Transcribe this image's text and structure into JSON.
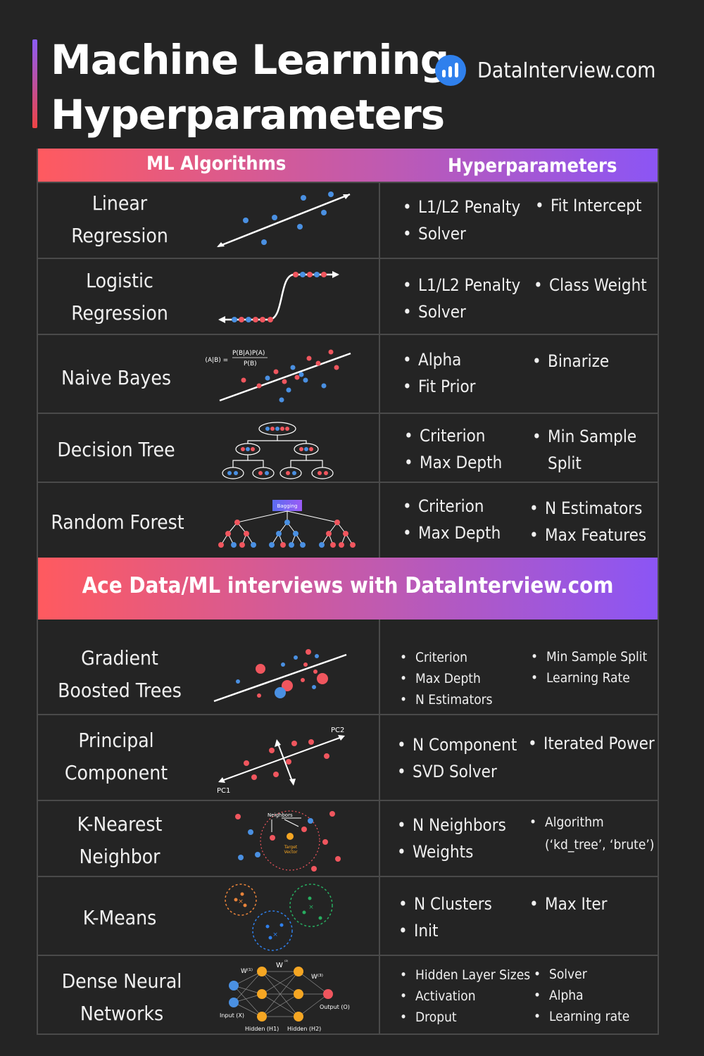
{
  "title": {
    "line1": "Machine Learning",
    "line2": "Hyperparameters"
  },
  "brand": {
    "text": "DataInterview.com",
    "icon": "bar-chart-icon",
    "color": "#2f80ed"
  },
  "header": {
    "col1": "ML Algorithms",
    "col2": "Hyperparameters"
  },
  "banner": "Ace Data/ML interviews with DataInterview.com",
  "colors": {
    "red": "#f0565e",
    "blue": "#4a90e2",
    "gradient_start": "#ff5a5f",
    "gradient_end": "#8b55f5"
  },
  "rows": [
    {
      "name": [
        "Linear",
        "Regression"
      ],
      "left": [
        "L1/L2 Penalty",
        "Solver"
      ],
      "right": [
        "Fit Intercept"
      ]
    },
    {
      "name": [
        "Logistic",
        "Regression"
      ],
      "left": [
        "L1/L2 Penalty",
        "Solver"
      ],
      "right": [
        "Class Weight"
      ]
    },
    {
      "name": [
        "Naive Bayes"
      ],
      "left": [
        "Alpha",
        "Fit Prior"
      ],
      "right": [
        "Binarize"
      ],
      "formula_left": "P(A|B) =",
      "formula_num": "P(B|A)P(A)",
      "formula_den": "P(B)"
    },
    {
      "name": [
        "Decision Tree"
      ],
      "left": [
        "Criterion",
        "Max Depth"
      ],
      "right": [
        "Min Sample",
        "Split"
      ]
    },
    {
      "name": [
        "Random Forest"
      ],
      "left": [
        "Criterion",
        "Max Depth"
      ],
      "right": [
        "N Estimators",
        "Max Features"
      ],
      "badge": "Bagging"
    },
    {
      "name": [
        "Gradient",
        "Boosted Trees"
      ],
      "left": [
        "Criterion",
        "Max Depth",
        "N Estimators"
      ],
      "right": [
        "Min Sample Split",
        "Learning Rate"
      ]
    },
    {
      "name": [
        "Principal",
        "Component"
      ],
      "left": [
        "N Component",
        "SVD Solver"
      ],
      "right": [
        "Iterated Power"
      ],
      "pc1": "PC1",
      "pc2": "PC2"
    },
    {
      "name": [
        "K-Nearest",
        "Neighbor"
      ],
      "left": [
        "N Neighbors",
        "Weights"
      ],
      "right": [
        "Algorithm",
        "(‘kd_tree’, ‘brute’)"
      ],
      "neighbors_label": "Neighbors",
      "target_label1": "Target",
      "target_label2": "Vector"
    },
    {
      "name": [
        "K-Means"
      ],
      "left": [
        "N Clusters",
        "Init"
      ],
      "right": [
        "Max Iter"
      ]
    },
    {
      "name": [
        "Dense Neural",
        "Networks"
      ],
      "left": [
        "Hidden Layer Sizes",
        "Activation",
        "Droput"
      ],
      "right": [
        "Solver",
        "Alpha",
        "Learning rate"
      ],
      "input_label": "Input (X)",
      "output_label": "Output (O)",
      "h1_label": "Hidden (H1)",
      "h2_label": "Hidden (H2)",
      "w1": "W⁽¹⁾",
      "w2": "W",
      "w2_sup": "⁽²⁾",
      "w3": "W⁽³⁾"
    }
  ]
}
